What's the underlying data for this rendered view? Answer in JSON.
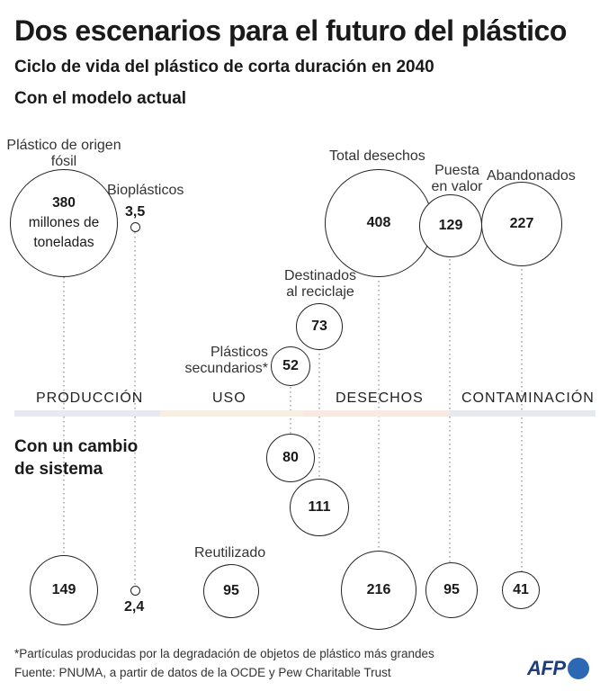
{
  "header": {
    "title": "Dos escenarios para el futuro del plástico",
    "subtitle": "Ciclo de vida del plástico de corta duración en 2040"
  },
  "scenarios": {
    "current": "Con el modelo actual",
    "change_line1": "Con un cambio",
    "change_line2": "de sistema"
  },
  "labels": {
    "fossil_1": "Plástico de origen",
    "fossil_2": "fósil",
    "bio": "Bioplásticos",
    "total_waste": "Total desechos",
    "valorized_1": "Puesta",
    "valorized_2": "en valor",
    "abandoned": "Abandonados",
    "recycling_1": "Destinados",
    "recycling_2": "al reciclaje",
    "secondary_1": "Plásticos",
    "secondary_2": "secundarios*",
    "reused": "Reutilizado"
  },
  "phases": [
    "PRODUCCIÓN",
    "USO",
    "DESECHOS",
    "CONTAMINACIÓN"
  ],
  "phase_colors": [
    "#e6e9f2",
    "#f7f0e2",
    "#f8e9e2",
    "#e6e9ee"
  ],
  "values": {
    "current": {
      "fossil_value": "380",
      "fossil_unit_1": "millones de",
      "fossil_unit_2": "toneladas",
      "bio": "3,5",
      "total_waste": "408",
      "valorized": "129",
      "abandoned": "227",
      "recycling": "73",
      "secondary": "52"
    },
    "change": {
      "secondary": "80",
      "recycling": "111",
      "fossil": "149",
      "bio": "2,4",
      "reused": "95",
      "total_waste": "216",
      "valorized": "95",
      "abandoned": "41"
    }
  },
  "footer": {
    "note": "*Partículas producidas por la degradación de objetos de plástico más grandes",
    "source": "Fuente: PNUMA, a partir de datos de la OCDE y Pew Charitable Trust",
    "logo": "AFP"
  }
}
